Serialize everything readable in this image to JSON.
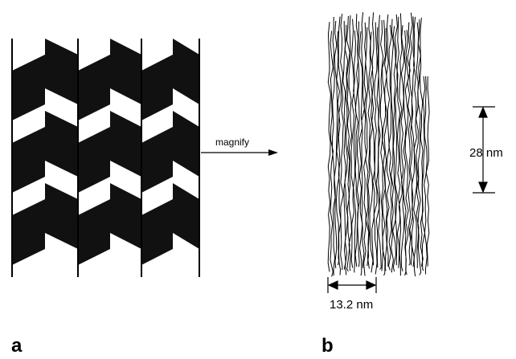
{
  "labels": {
    "arrow": "magnify",
    "height": "28 nm",
    "width": "13.2 nm"
  },
  "panels": {
    "left": "a",
    "right": "b"
  }
}
